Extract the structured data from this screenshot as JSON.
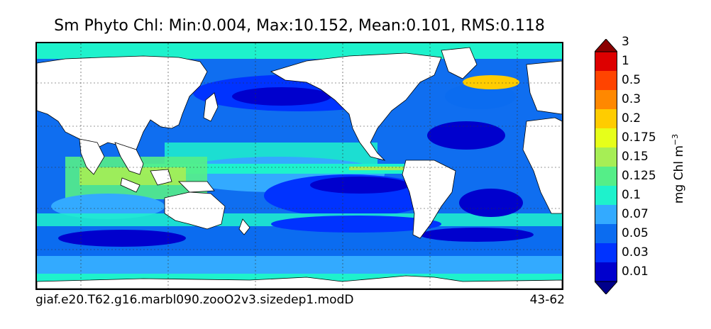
{
  "title": "Sm Phyto Chl: Min:0.004, Max:10.152, Mean:0.101, RMS:0.118",
  "footer": {
    "run_name": "giaf.e20.T62.g16.marbl090.zooO2v3.sizedep1.modD",
    "years": "43-62"
  },
  "colorbar": {
    "units": "mg Chl m",
    "units_exponent": "−3",
    "levels": [
      "0.01",
      "0.03",
      "0.05",
      "0.07",
      "0.1",
      "0.125",
      "0.15",
      "0.175",
      "0.2",
      "0.3",
      "0.5",
      "1",
      "3"
    ],
    "colors": [
      "#00008b",
      "#0000cd",
      "#0033ff",
      "#0b6cf0",
      "#33aaff",
      "#1ef2cc",
      "#55ee88",
      "#a6ee55",
      "#e6ff1a",
      "#ffcc00",
      "#ff8800",
      "#ff4400",
      "#dd0000",
      "#8b0000"
    ],
    "extend": "both"
  },
  "chart_data": {
    "type": "heatmap",
    "title": "Sm Phyto Chl: Min:0.004, Max:10.152, Mean:0.101, RMS:0.118",
    "variable": "Sm Phyto Chl",
    "stats": {
      "min": 0.004,
      "max": 10.152,
      "mean": 0.101,
      "rms": 0.118
    },
    "units": "mg Chl m^-3",
    "contour_levels": [
      0.01,
      0.03,
      0.05,
      0.07,
      0.1,
      0.125,
      0.15,
      0.175,
      0.2,
      0.3,
      0.5,
      1,
      3
    ],
    "grid": true,
    "projection": "global map, Pacific-centered"
  }
}
